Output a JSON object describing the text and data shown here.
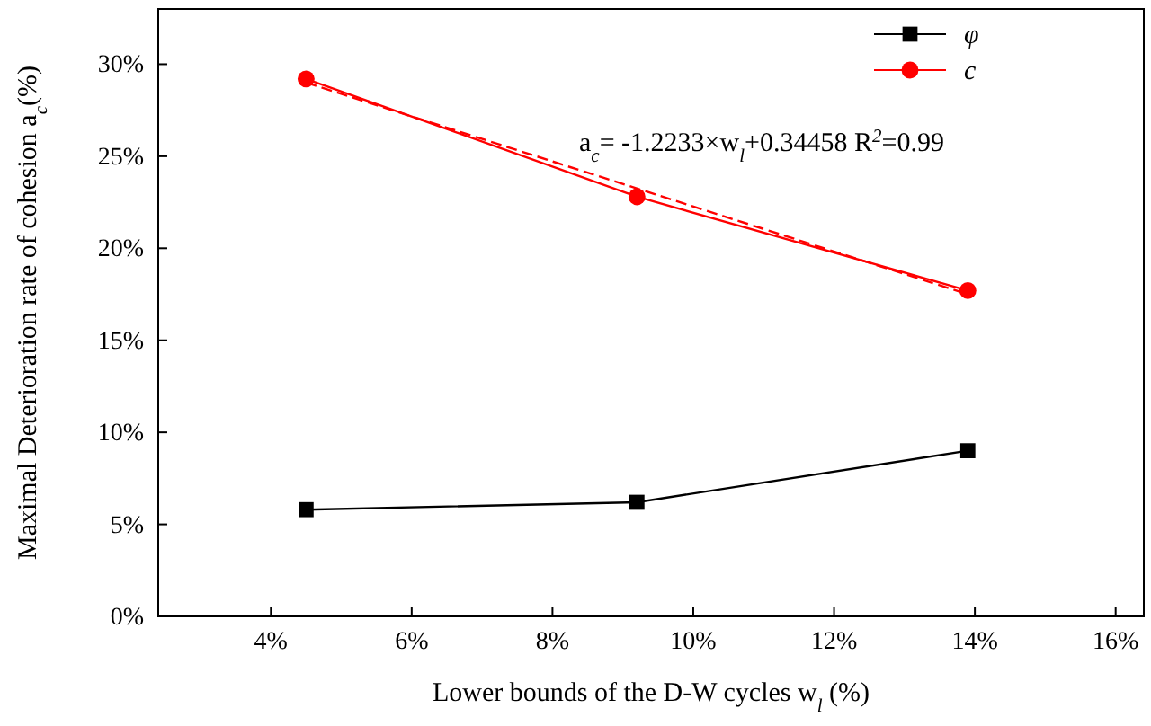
{
  "chart_data": {
    "type": "line",
    "xlabel": "Lower bounds of the D-W cycles w$_{l}$ (%)",
    "ylabel": "Maximal Deterioration rate of cohesion  a$_{c}$(%)",
    "x": [
      4.5,
      9.2,
      13.9
    ],
    "series": [
      {
        "name": "φ",
        "color": "#000000",
        "marker": "square",
        "values": [
          5.8,
          6.2,
          9.0
        ]
      },
      {
        "name": "c",
        "color": "#ff0000",
        "marker": "circle",
        "values": [
          29.2,
          22.8,
          17.7
        ]
      },
      {
        "type": "line",
        "color": "#ff0000",
        "marker": "none",
        "line_style": "dashed",
        "x": [
          4.5,
          13.9
        ],
        "values": [
          29.0,
          17.5
        ]
      }
    ],
    "xlim": [
      2.4,
      16.4
    ],
    "xticks": [
      {
        "value": 4,
        "label": "4%"
      },
      {
        "value": 6,
        "label": "6%"
      },
      {
        "value": 8,
        "label": "8%"
      },
      {
        "value": 10,
        "label": "10%"
      },
      {
        "value": 12,
        "label": "12%"
      },
      {
        "value": 14,
        "label": "14%"
      },
      {
        "value": 16,
        "label": "16%"
      }
    ],
    "ylim": [
      0,
      33
    ],
    "yticks": [
      {
        "value": 0,
        "label": "0%"
      },
      {
        "value": 5,
        "label": "5%"
      },
      {
        "value": 10,
        "label": "10%"
      },
      {
        "value": 15,
        "label": "15%"
      },
      {
        "value": 20,
        "label": "20%"
      },
      {
        "value": 25,
        "label": "25%"
      },
      {
        "value": 30,
        "label": "30%"
      }
    ],
    "annotations": [
      "a$_{c}$= -1.2233×w$_{l}$+0.34458    R$^{2}$=0.99"
    ],
    "legend": "top right",
    "grid": false
  }
}
